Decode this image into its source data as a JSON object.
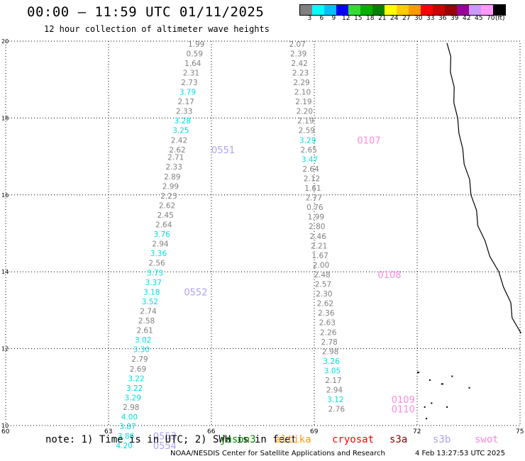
{
  "title": "00:00 – 11:59 UTC 01/11/2025",
  "subtitle": "12 hour collection of altimeter wave heights",
  "colorbar": {
    "colors": [
      "#808080",
      "#00ffff",
      "#00bfff",
      "#0000ff",
      "#33dd33",
      "#00b000",
      "#008000",
      "#ffff00",
      "#ffcc00",
      "#ff9900",
      "#ff0000",
      "#cc0000",
      "#990000",
      "#990099",
      "#cc99ff",
      "#ff99ff",
      "#000000"
    ],
    "labels": [
      "3",
      "6",
      "9",
      "12",
      "15",
      "18",
      "21",
      "24",
      "27",
      "30",
      "33",
      "36",
      "39",
      "42",
      "45",
      "70",
      "(ft)"
    ]
  },
  "map": {
    "lon_range": [
      60,
      75
    ],
    "lat_range": [
      10,
      20
    ],
    "lon_ticks": [
      "60",
      "63",
      "66",
      "69",
      "72",
      "75"
    ],
    "lat_ticks": [
      "10",
      "12",
      "14",
      "16",
      "18",
      "20"
    ],
    "grid": true
  },
  "tracks": [
    {
      "id": "track-west",
      "points": [
        {
          "lat": 19.93,
          "lon": 65.8,
          "swh": "1.99",
          "color": "#808080"
        },
        {
          "lat": 19.68,
          "lon": 65.75,
          "swh": "0.59",
          "color": "#808080"
        },
        {
          "lat": 19.43,
          "lon": 65.7,
          "swh": "1.64",
          "color": "#808080"
        },
        {
          "lat": 19.18,
          "lon": 65.65,
          "swh": "2.31",
          "color": "#808080"
        },
        {
          "lat": 18.93,
          "lon": 65.6,
          "swh": "2.73",
          "color": "#808080"
        },
        {
          "lat": 18.68,
          "lon": 65.55,
          "swh": "3.79",
          "color": "#00dddd"
        },
        {
          "lat": 18.43,
          "lon": 65.5,
          "swh": "2.17",
          "color": "#808080"
        },
        {
          "lat": 18.18,
          "lon": 65.45,
          "swh": "2.33",
          "color": "#808080"
        },
        {
          "lat": 17.93,
          "lon": 65.4,
          "swh": "3.28",
          "color": "#00dddd"
        },
        {
          "lat": 17.68,
          "lon": 65.35,
          "swh": "3.25",
          "color": "#00dddd"
        },
        {
          "lat": 17.43,
          "lon": 65.3,
          "swh": "2.42",
          "color": "#808080"
        },
        {
          "lat": 17.18,
          "lon": 65.25,
          "swh": "2.62",
          "color": "#808080"
        },
        {
          "lat": 16.98,
          "lon": 65.2,
          "swh": "2.71",
          "color": "#808080"
        },
        {
          "lat": 16.73,
          "lon": 65.15,
          "swh": "2.33",
          "color": "#808080"
        },
        {
          "lat": 16.48,
          "lon": 65.1,
          "swh": "2.89",
          "color": "#808080"
        },
        {
          "lat": 16.23,
          "lon": 65.05,
          "swh": "2.99",
          "color": "#808080"
        },
        {
          "lat": 15.98,
          "lon": 65.0,
          "swh": "2.23",
          "color": "#808080"
        },
        {
          "lat": 15.73,
          "lon": 64.95,
          "swh": "2.62",
          "color": "#808080"
        },
        {
          "lat": 15.48,
          "lon": 64.9,
          "swh": "2.45",
          "color": "#808080"
        },
        {
          "lat": 15.23,
          "lon": 64.85,
          "swh": "2.64",
          "color": "#808080"
        },
        {
          "lat": 14.98,
          "lon": 64.8,
          "swh": "3.76",
          "color": "#00dddd"
        },
        {
          "lat": 14.73,
          "lon": 64.75,
          "swh": "2.94",
          "color": "#808080"
        },
        {
          "lat": 14.48,
          "lon": 64.7,
          "swh": "3.36",
          "color": "#00dddd"
        },
        {
          "lat": 14.23,
          "lon": 64.65,
          "swh": "2.56",
          "color": "#808080"
        },
        {
          "lat": 13.98,
          "lon": 64.6,
          "swh": "3.73",
          "color": "#00dddd"
        },
        {
          "lat": 13.73,
          "lon": 64.55,
          "swh": "3.37",
          "color": "#00dddd"
        },
        {
          "lat": 13.48,
          "lon": 64.5,
          "swh": "3.18",
          "color": "#00dddd"
        },
        {
          "lat": 13.23,
          "lon": 64.45,
          "swh": "3.52",
          "color": "#00dddd"
        },
        {
          "lat": 12.98,
          "lon": 64.4,
          "swh": "2.74",
          "color": "#808080"
        },
        {
          "lat": 12.73,
          "lon": 64.35,
          "swh": "2.58",
          "color": "#808080"
        },
        {
          "lat": 12.48,
          "lon": 64.3,
          "swh": "2.61",
          "color": "#808080"
        },
        {
          "lat": 12.23,
          "lon": 64.25,
          "swh": "3.02",
          "color": "#00dddd"
        },
        {
          "lat": 11.98,
          "lon": 64.2,
          "swh": "3.30",
          "color": "#00dddd"
        },
        {
          "lat": 11.73,
          "lon": 64.15,
          "swh": "2.79",
          "color": "#808080"
        },
        {
          "lat": 11.48,
          "lon": 64.1,
          "swh": "2.69",
          "color": "#808080"
        },
        {
          "lat": 11.23,
          "lon": 64.05,
          "swh": "3.22",
          "color": "#00dddd"
        },
        {
          "lat": 10.98,
          "lon": 64.0,
          "swh": "3.22",
          "color": "#00dddd"
        },
        {
          "lat": 10.73,
          "lon": 63.95,
          "swh": "3.29",
          "color": "#00dddd"
        },
        {
          "lat": 10.48,
          "lon": 63.9,
          "swh": "2.98",
          "color": "#808080"
        },
        {
          "lat": 10.23,
          "lon": 63.85,
          "swh": "4.00",
          "color": "#00dddd"
        },
        {
          "lat": 9.98,
          "lon": 63.8,
          "swh": "3.87",
          "color": "#00dddd"
        },
        {
          "lat": 9.73,
          "lon": 63.75,
          "swh": "3.86",
          "color": "#00dddd"
        },
        {
          "lat": 9.48,
          "lon": 63.7,
          "swh": "4.20",
          "color": "#00dddd"
        }
      ],
      "time_labels": [
        {
          "lat": 17.18,
          "lon": 66.0,
          "text": "0551",
          "color": "#b0a0f0"
        },
        {
          "lat": 13.48,
          "lon": 65.2,
          "text": "0552",
          "color": "#b0a0f0"
        },
        {
          "lat": 9.73,
          "lon": 64.3,
          "text": "0553",
          "color": "#b0a0f0"
        },
        {
          "lat": 9.48,
          "lon": 64.3,
          "text": "0554",
          "color": "#b0a0f0"
        }
      ]
    },
    {
      "id": "track-east",
      "points": [
        {
          "lat": 19.93,
          "lon": 68.75,
          "swh": "2.07",
          "color": "#808080"
        },
        {
          "lat": 19.68,
          "lon": 68.78,
          "swh": "2.39",
          "color": "#808080"
        },
        {
          "lat": 19.43,
          "lon": 68.81,
          "swh": "2.42",
          "color": "#808080"
        },
        {
          "lat": 19.18,
          "lon": 68.84,
          "swh": "2.23",
          "color": "#808080"
        },
        {
          "lat": 18.93,
          "lon": 68.87,
          "swh": "2.29",
          "color": "#808080"
        },
        {
          "lat": 18.68,
          "lon": 68.9,
          "swh": "2.10",
          "color": "#808080"
        },
        {
          "lat": 18.43,
          "lon": 68.93,
          "swh": "2.19",
          "color": "#808080"
        },
        {
          "lat": 18.18,
          "lon": 68.96,
          "swh": "2.20",
          "color": "#808080"
        },
        {
          "lat": 17.93,
          "lon": 68.99,
          "swh": "2.19",
          "color": "#808080"
        },
        {
          "lat": 17.68,
          "lon": 69.02,
          "swh": "2.59",
          "color": "#808080"
        },
        {
          "lat": 17.43,
          "lon": 69.05,
          "swh": "3.29",
          "color": "#00dddd"
        },
        {
          "lat": 17.18,
          "lon": 69.08,
          "swh": "2.65",
          "color": "#808080"
        },
        {
          "lat": 16.93,
          "lon": 69.11,
          "swh": "3.47",
          "color": "#00dddd"
        },
        {
          "lat": 16.68,
          "lon": 69.14,
          "swh": "2.64",
          "color": "#808080"
        },
        {
          "lat": 16.43,
          "lon": 69.17,
          "swh": "2.12",
          "color": "#808080"
        },
        {
          "lat": 16.18,
          "lon": 69.2,
          "swh": "1.61",
          "color": "#808080"
        },
        {
          "lat": 15.93,
          "lon": 69.23,
          "swh": "2.77",
          "color": "#808080"
        },
        {
          "lat": 15.68,
          "lon": 69.26,
          "swh": "0.76",
          "color": "#808080"
        },
        {
          "lat": 15.43,
          "lon": 69.29,
          "swh": "1.99",
          "color": "#808080"
        },
        {
          "lat": 15.18,
          "lon": 69.32,
          "swh": "2.80",
          "color": "#808080"
        },
        {
          "lat": 14.93,
          "lon": 69.35,
          "swh": "2.46",
          "color": "#808080"
        },
        {
          "lat": 14.68,
          "lon": 69.38,
          "swh": "2.21",
          "color": "#808080"
        },
        {
          "lat": 14.43,
          "lon": 69.41,
          "swh": "1.67",
          "color": "#808080"
        },
        {
          "lat": 14.18,
          "lon": 69.44,
          "swh": "2.00",
          "color": "#808080"
        },
        {
          "lat": 13.93,
          "lon": 69.47,
          "swh": "2.48",
          "color": "#808080"
        },
        {
          "lat": 13.68,
          "lon": 69.5,
          "swh": "2.57",
          "color": "#808080"
        },
        {
          "lat": 13.43,
          "lon": 69.53,
          "swh": "2.30",
          "color": "#808080"
        },
        {
          "lat": 13.18,
          "lon": 69.56,
          "swh": "2.62",
          "color": "#808080"
        },
        {
          "lat": 12.93,
          "lon": 69.59,
          "swh": "2.36",
          "color": "#808080"
        },
        {
          "lat": 12.68,
          "lon": 69.62,
          "swh": "2.63",
          "color": "#808080"
        },
        {
          "lat": 12.43,
          "lon": 69.65,
          "swh": "2.26",
          "color": "#808080"
        },
        {
          "lat": 12.18,
          "lon": 69.68,
          "swh": "2.78",
          "color": "#808080"
        },
        {
          "lat": 11.93,
          "lon": 69.71,
          "swh": "2.98",
          "color": "#808080"
        },
        {
          "lat": 11.68,
          "lon": 69.74,
          "swh": "3.26",
          "color": "#00dddd"
        },
        {
          "lat": 11.43,
          "lon": 69.77,
          "swh": "3.05",
          "color": "#00dddd"
        },
        {
          "lat": 11.18,
          "lon": 69.8,
          "swh": "2.17",
          "color": "#808080"
        },
        {
          "lat": 10.93,
          "lon": 69.83,
          "swh": "2.94",
          "color": "#808080"
        },
        {
          "lat": 10.68,
          "lon": 69.86,
          "swh": "3.12",
          "color": "#00dddd"
        },
        {
          "lat": 10.43,
          "lon": 69.89,
          "swh": "2.76",
          "color": "#808080"
        }
      ],
      "time_labels": [
        {
          "lat": 17.43,
          "lon": 70.25,
          "text": "0107",
          "color": "#ff88dd"
        },
        {
          "lat": 13.93,
          "lon": 70.85,
          "text": "0108",
          "color": "#ff88dd"
        },
        {
          "lat": 10.68,
          "lon": 71.25,
          "text": "0109",
          "color": "#ff88dd"
        },
        {
          "lat": 10.43,
          "lon": 71.25,
          "text": "0110",
          "color": "#ff88dd"
        }
      ]
    }
  ],
  "note": "note: 1) Time is in UTC; 2) SWH is in feet",
  "legend": [
    {
      "label": "jason3",
      "color": "#008800"
    },
    {
      "label": "altika",
      "color": "#ff9900"
    },
    {
      "label": "cryosat",
      "color": "#ff0000"
    },
    {
      "label": "s3a",
      "color": "#880000"
    },
    {
      "label": "s3b",
      "color": "#b0a0f0"
    },
    {
      "label": "swot",
      "color": "#ff88dd"
    }
  ],
  "footer": {
    "center": "NOAA/NESDIS Center for Satellite Applications and Research",
    "timestamp": "4 Feb 13:27:53 UTC 2025"
  }
}
